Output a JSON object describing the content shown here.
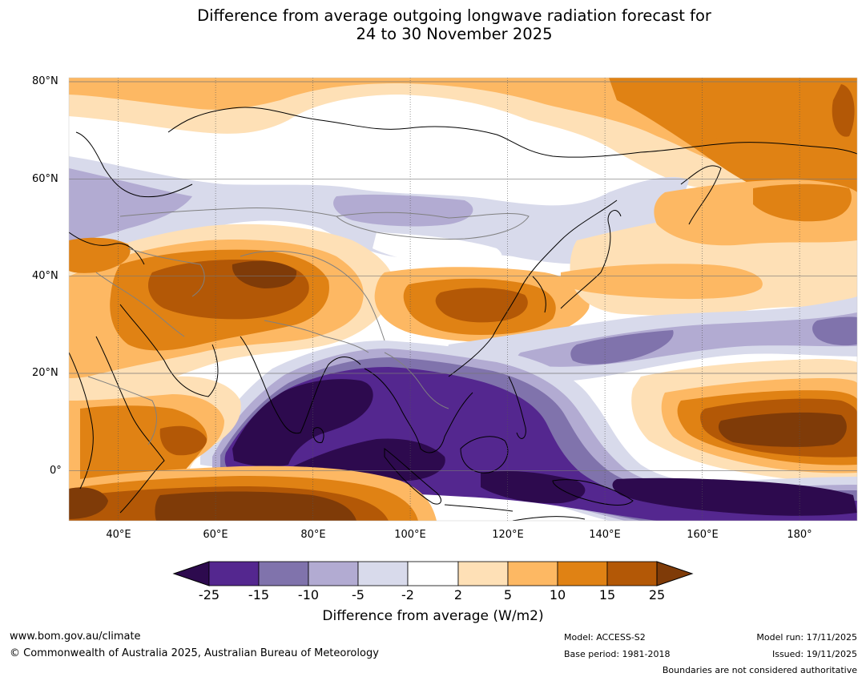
{
  "title": {
    "line1": "Difference from average outgoing longwave radiation forecast for",
    "line2": "24 to 30 November 2025"
  },
  "map": {
    "lat_labels": [
      "80°N",
      "60°N",
      "40°N",
      "20°N",
      "0°"
    ],
    "lon_labels": [
      "40°E",
      "60°E",
      "80°E",
      "100°E",
      "120°E",
      "140°E",
      "160°E",
      "180°"
    ],
    "lat_values": [
      80,
      60,
      40,
      20,
      0
    ],
    "lon_values": [
      40,
      60,
      80,
      100,
      120,
      140,
      160,
      180
    ],
    "lat_range": [
      -10,
      80
    ],
    "lon_range": [
      30,
      192
    ],
    "colors": {
      "p5": "#2d0a4e",
      "p4": "#54278f",
      "p3": "#8073ac",
      "p2": "#b2abd2",
      "p1": "#d8daeb",
      "neutral": "#ffffff",
      "o1": "#fee0b6",
      "o2": "#fdb863",
      "o3": "#e08214",
      "o4": "#b35806",
      "o5": "#7f3b08",
      "coast": "#000000",
      "border": "#808080"
    }
  },
  "colorbar": {
    "ticks": [
      "-25",
      "-15",
      "-10",
      "-5",
      "-2",
      "2",
      "5",
      "10",
      "15",
      "25"
    ],
    "title": "Difference from average (W/m2)"
  },
  "footer": {
    "website": "www.bom.gov.au/climate",
    "copyright": "© Commonwealth of Australia 2025, Australian Bureau of Meteorology",
    "model": "Model: ACCESS-S2",
    "base_period": "Base period: 1981-2018",
    "model_run": "Model run: 17/11/2025",
    "issued": "Issued: 19/11/2025",
    "disclaimer": "Boundaries are not considered authoritative"
  }
}
